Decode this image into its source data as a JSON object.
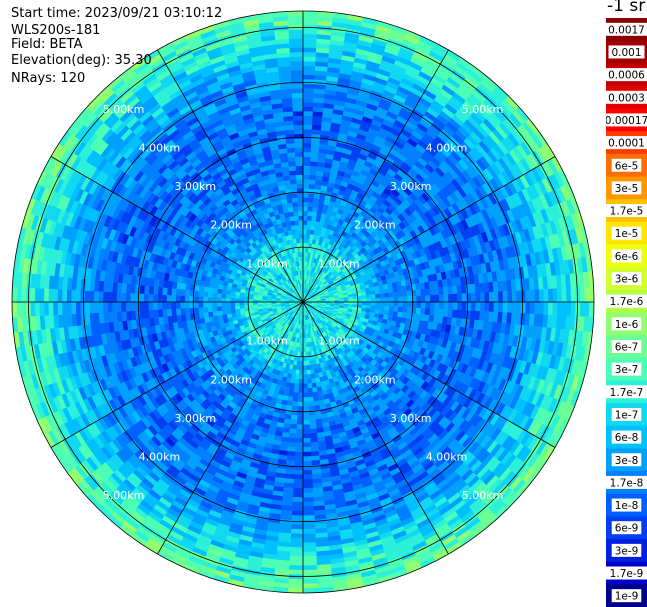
{
  "header": {
    "start_time": "Start time: 2023/09/21 03:10:12",
    "instrument": "WLS200s-181",
    "field": "Field: BETA",
    "elevation": "Elevation(deg): 35.30",
    "nrays": "NRays: 120"
  },
  "colorbar": {
    "unit_label": "-1 sr",
    "ticks": [
      "0.0017",
      "0.001",
      "0.0006",
      "0.0003",
      "0.00017",
      "0.0001",
      "6e-5",
      "3e-5",
      "1.7e-5",
      "1e-5",
      "6e-6",
      "3e-6",
      "1.7e-6",
      "1e-6",
      "6e-7",
      "3e-7",
      "1.7e-7",
      "1e-7",
      "6e-8",
      "3e-8",
      "1.7e-8",
      "1e-8",
      "6e-9",
      "3e-9",
      "1.7e-9",
      "1e-9"
    ],
    "colors": [
      "#8b0000",
      "#a00000",
      "#c00000",
      "#e00000",
      "#ff0000",
      "#ff3c00",
      "#ff6e00",
      "#ff9600",
      "#ffc000",
      "#ffe600",
      "#f0ff10",
      "#d4ff2c",
      "#b4ff4c",
      "#90ff70",
      "#6cff94",
      "#4cffb4",
      "#2cf0d8",
      "#10d8f0",
      "#00c0ff",
      "#00a0ff",
      "#0080ff",
      "#0060ff",
      "#0040f0",
      "#0020e0",
      "#0000c8",
      "#00008b"
    ]
  },
  "chart_data": {
    "type": "heatmap",
    "projection": "polar (PPI)",
    "rays": 120,
    "range_rings_km": [
      1,
      2,
      3,
      4,
      5
    ],
    "ring_labels": [
      "1.00km",
      "2.00km",
      "3.00km",
      "4.00km",
      "5.00km"
    ],
    "spokes_deg": [
      0,
      30,
      60,
      90,
      120,
      150,
      180,
      210,
      240,
      270,
      300,
      330
    ],
    "max_range_km": 5.3,
    "field_profile": [
      {
        "range_km": 0.5,
        "value": 1.7e-07
      },
      {
        "range_km": 1.0,
        "value": 1.7e-07
      },
      {
        "range_km": 1.5,
        "value": 3e-08
      },
      {
        "range_km": 2.0,
        "value": 3e-08
      },
      {
        "range_km": 2.5,
        "value": 1.7e-08
      },
      {
        "range_km": 3.0,
        "value": 1.7e-08
      },
      {
        "range_km": 3.5,
        "value": 1.7e-08
      },
      {
        "range_km": 4.0,
        "value": 3e-08
      },
      {
        "range_km": 4.5,
        "value": 1e-07
      },
      {
        "range_km": 5.0,
        "value": 3e-07
      },
      {
        "range_km": 5.3,
        "value": 6e-07
      }
    ]
  }
}
